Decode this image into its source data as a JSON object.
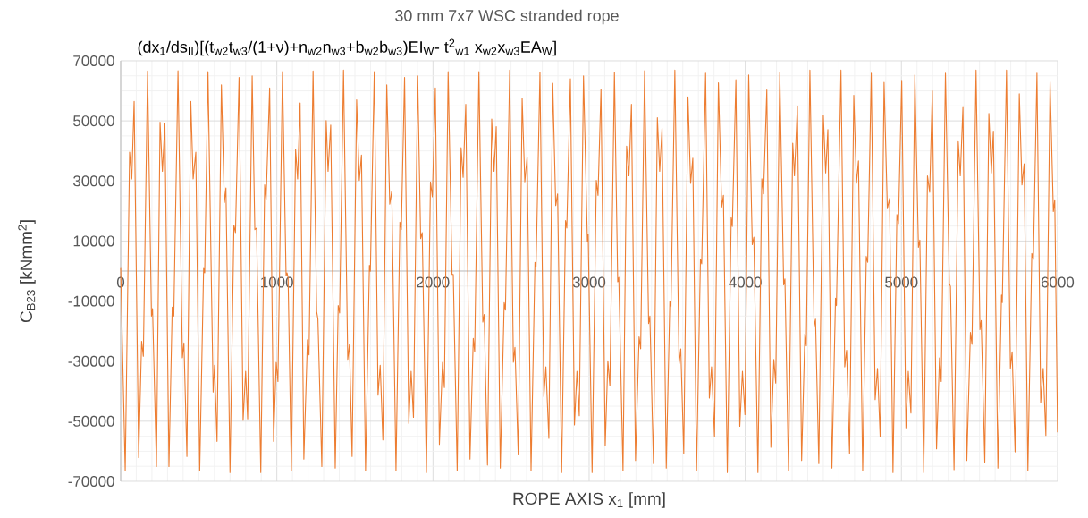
{
  "chart_data": {
    "type": "line",
    "title": "30 mm 7x7 WSC stranded rope",
    "subtitle": "(dx$_{1}$/ds$_{II}$)[(t$_{w2}$t$_{w3}$/(1+ν)+n$_{w2}$n$_{w3}$+b$_{w2}$b$_{w3}$)EI$_{W}$- t$^{2}$$_{w1}$ x$_{w2}$x$_{w3}$EA$_{W}$]",
    "xlabel": "ROPE AXIS x$_{1}$ [mm]",
    "ylabel": "C$_{B23}$ [kNmm$^{2}$]",
    "x": [
      0,
      29,
      57,
      71,
      86,
      115,
      134,
      145,
      172,
      197,
      204,
      229,
      252,
      267,
      283,
      309,
      330,
      340,
      367,
      395,
      405,
      424,
      449,
      464,
      481,
      506,
      531,
      538,
      559,
      592,
      601,
      617,
      645,
      664,
      674,
      700,
      725,
      735,
      758,
      784,
      800,
      813,
      842,
      859,
      870,
      897,
      922,
      931,
      954,
      979,
      996,
      1007,
      1036,
      1059,
      1065,
      1072,
      1093,
      1120,
      1133,
      1149,
      1173,
      1196,
      1206,
      1232,
      1255,
      1263,
      1288,
      1316,
      1328,
      1345,
      1374,
      1393,
      1402,
      1427,
      1454,
      1465,
      1482,
      1511,
      1528,
      1542,
      1568,
      1593,
      1599,
      1624,
      1648,
      1662,
      1679,
      1704,
      1723,
      1736,
      1763,
      1788,
      1797,
      1818,
      1845,
      1860,
      1875,
      1902,
      1921,
      1931,
      1958,
      1984,
      1996,
      2015,
      2041,
      2061,
      2073,
      2097,
      2122,
      2130,
      2155,
      2180,
      2193,
      2210,
      2237,
      2258,
      2267,
      2294,
      2319,
      2328,
      2349,
      2376,
      2391,
      2405,
      2431,
      2456,
      2464,
      2491,
      2515,
      2525,
      2546,
      2571,
      2588,
      2603,
      2628,
      2653,
      2660,
      2685,
      2710,
      2723,
      2742,
      2767,
      2786,
      2798,
      2824,
      2849,
      2857,
      2880,
      2906,
      2922,
      2937,
      2964,
      2989,
      2994,
      3019,
      3046,
      3057,
      3076,
      3103,
      3120,
      3133,
      3162,
      3183,
      3190,
      3217,
      3240,
      3255,
      3271,
      3297,
      3320,
      3330,
      3355,
      3381,
      3389,
      3412,
      3437,
      3452,
      3467,
      3494,
      3517,
      3524,
      3549,
      3576,
      3587,
      3606,
      3633,
      3650,
      3664,
      3688,
      3713,
      3721,
      3746,
      3770,
      3784,
      3803,
      3828,
      3849,
      3860,
      3885,
      3910,
      3917,
      3940,
      3965,
      3982,
      3998,
      4022,
      4045,
      4055,
      4081,
      4106,
      4117,
      4138,
      4164,
      4183,
      4195,
      4221,
      4246,
      4254,
      4277,
      4304,
      4315,
      4334,
      4361,
      4382,
      4391,
      4414,
      4441,
      4450,
      4471,
      4500,
      4515,
      4529,
      4555,
      4578,
      4584,
      4613,
      4637,
      4649,
      4668,
      4695,
      4712,
      4725,
      4752,
      4775,
      4784,
      4807,
      4832,
      4847,
      4864,
      4889,
      4910,
      4924,
      4946,
      4971,
      4981,
      5002,
      5029,
      5044,
      5061,
      5086,
      5109,
      5118,
      5143,
      5167,
      5181,
      5198,
      5225,
      5244,
      5255,
      5282,
      5307,
      5314,
      5337,
      5364,
      5377,
      5394,
      5419,
      5442,
      5452,
      5478,
      5503,
      5511,
      5534,
      5560,
      5576,
      5589,
      5618,
      5641,
      5646,
      5673,
      5698,
      5709,
      5728,
      5755,
      5772,
      5786,
      5810,
      5835,
      5845,
      5868,
      5892,
      5908,
      5925,
      5952,
      5973,
      5982,
      6000
    ],
    "series": [
      {
        "color": "#ed7d31",
        "values": [
          1000,
          -66600,
          39600,
          30700,
          56500,
          -62100,
          -23400,
          -28400,
          66600,
          -15000,
          -12500,
          -65100,
          49600,
          33200,
          49100,
          -65100,
          -12000,
          -15000,
          66700,
          -28900,
          -23900,
          -61700,
          56500,
          30700,
          39600,
          -66600,
          900,
          -600,
          66400,
          -40300,
          -31400,
          -56700,
          62000,
          22800,
          27700,
          -67100,
          15300,
          12800,
          64500,
          -49700,
          -33400,
          -49200,
          65000,
          13800,
          14300,
          -67100,
          28700,
          23700,
          61000,
          -56700,
          -30400,
          -36800,
          66400,
          -1600,
          -600,
          -2100,
          -66600,
          40600,
          30700,
          56000,
          -62600,
          -22900,
          -27900,
          66600,
          -13500,
          -16000,
          -65100,
          50100,
          33200,
          48600,
          -65600,
          -11500,
          -14000,
          66900,
          -29400,
          -24400,
          -61700,
          57000,
          30200,
          38600,
          -66600,
          1900,
          -100,
          66400,
          -41300,
          -31400,
          -56200,
          62000,
          22300,
          26700,
          -66600,
          16300,
          13800,
          64500,
          -50700,
          -33400,
          -48700,
          65000,
          10800,
          12800,
          -67100,
          29700,
          24700,
          61000,
          -57700,
          -30400,
          -38800,
          66400,
          -1100,
          -1100,
          -66600,
          41100,
          31200,
          55500,
          -62600,
          -22400,
          -26900,
          66400,
          -17000,
          -14500,
          -64600,
          50600,
          33200,
          48100,
          -65600,
          -10500,
          -13000,
          66900,
          -30400,
          -25400,
          -61200,
          57500,
          29700,
          38100,
          -66600,
          2900,
          1400,
          66100,
          -41800,
          -31900,
          -55700,
          62500,
          21800,
          25700,
          -67100,
          16800,
          14300,
          64000,
          -51200,
          -33400,
          -48200,
          65000,
          9800,
          12300,
          -67100,
          30200,
          25200,
          60500,
          -58200,
          -29900,
          -38300,
          66200,
          -3600,
          -2100,
          -66600,
          41600,
          31700,
          55500,
          -63100,
          -21900,
          -25900,
          66700,
          -17500,
          -15000,
          -64100,
          51100,
          33200,
          47600,
          -65600,
          -10000,
          -12000,
          66900,
          -30900,
          -25900,
          -60700,
          58000,
          29200,
          37600,
          -66600,
          3900,
          2400,
          65900,
          -42300,
          -31900,
          -55200,
          62700,
          21300,
          25200,
          -67100,
          17800,
          14800,
          63700,
          -51700,
          -33400,
          -47800,
          65300,
          8800,
          11300,
          -67100,
          30700,
          25700,
          60300,
          -58700,
          -29400,
          -37300,
          66200,
          -4600,
          -2600,
          -66600,
          42600,
          31700,
          55000,
          -63100,
          -20900,
          -24900,
          66900,
          -18500,
          -16000,
          -64100,
          51800,
          32700,
          47100,
          -65600,
          -9000,
          -11500,
          66900,
          -31900,
          -26400,
          -60700,
          58500,
          29200,
          36700,
          -66600,
          4900,
          2900,
          65900,
          -42800,
          -32400,
          -55200,
          62800,
          20800,
          24200,
          -67100,
          18800,
          15800,
          63500,
          -52200,
          -33400,
          -47300,
          65300,
          7900,
          10300,
          -67100,
          31700,
          26200,
          60000,
          -59200,
          -28900,
          -36800,
          65900,
          -4100,
          -5100,
          -66100,
          43100,
          31700,
          54500,
          -63100,
          -20400,
          -24400,
          66900,
          -19500,
          -16500,
          -63600,
          52500,
          32700,
          46600,
          -65600,
          -8000,
          -10500,
          66900,
          -32400,
          -26900,
          -60200,
          59000,
          28700,
          35700,
          -66600,
          5900,
          3900,
          65900,
          -43800,
          -32400,
          -54700,
          63000,
          19800,
          23700,
          -53700
        ]
      }
    ],
    "xlim": [
      0,
      6000
    ],
    "xticks": [
      0,
      1000,
      2000,
      3000,
      4000,
      5000,
      6000
    ],
    "ylim": [
      -70000,
      70000
    ],
    "yticks": [
      -70000,
      -50000,
      -30000,
      -10000,
      10000,
      30000,
      50000,
      70000
    ],
    "grid": true,
    "line_style": "solid",
    "marker": "none"
  }
}
